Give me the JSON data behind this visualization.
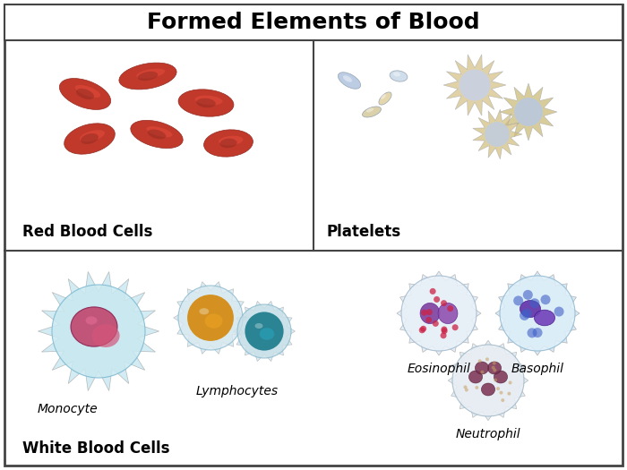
{
  "title": "Formed Elements of Blood",
  "title_fontsize": 18,
  "title_fontweight": "bold",
  "background_color": "#ffffff",
  "border_color": "#333333",
  "sections": {
    "top_left_label": "Red Blood Cells",
    "top_right_label": "Platelets",
    "bottom_left_label": "White Blood Cells"
  },
  "cell_labels": {
    "monocyte": "Monocyte",
    "lymphocytes": "Lymphocytes",
    "eosinophil": "Eosinophil",
    "basophil": "Basophil",
    "neutrophil": "Neutrophil"
  },
  "label_style": "italic",
  "section_label_fontsize": 12,
  "section_label_fontweight": "bold",
  "cell_label_fontsize": 10
}
